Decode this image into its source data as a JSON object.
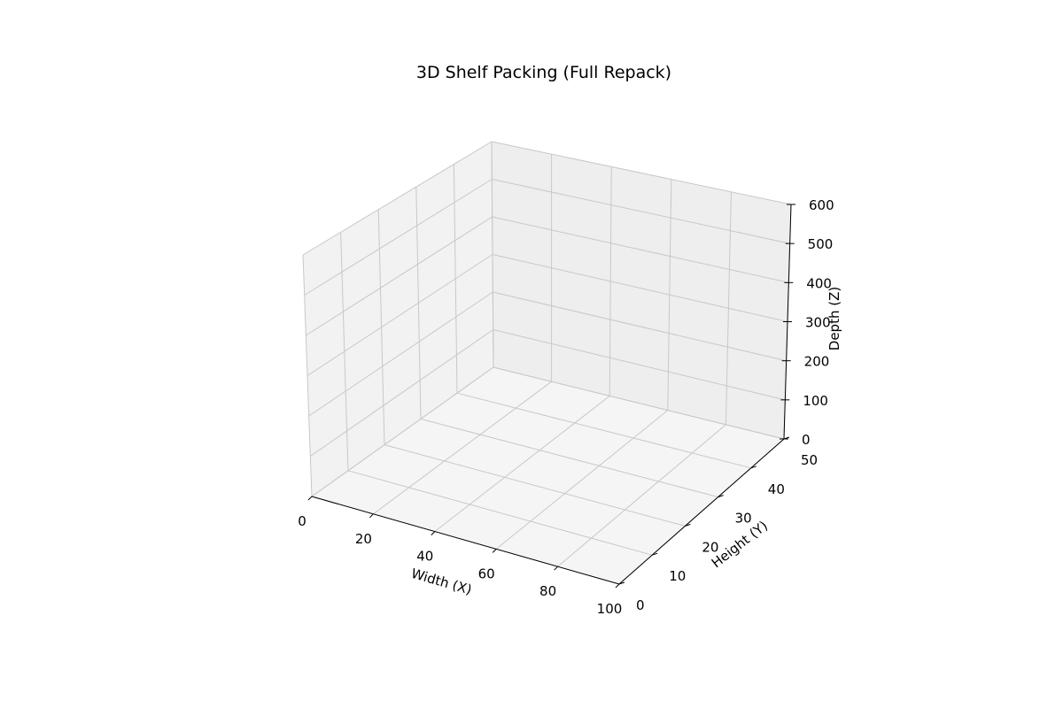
{
  "chart_data": {
    "type": "scatter",
    "projection": "3d",
    "title": "3D Shelf Packing (Full Repack)",
    "xlabel": "Width (X)",
    "ylabel": "Height (Y)",
    "zlabel": "Depth (Z)",
    "xlim": [
      0,
      100
    ],
    "ylim": [
      0,
      50
    ],
    "zlim": [
      0,
      600
    ],
    "xticks": [
      "0",
      "20",
      "40",
      "60",
      "80",
      "100"
    ],
    "yticks": [
      "0",
      "10",
      "20",
      "30",
      "40",
      "50"
    ],
    "zticks": [
      "0",
      "100",
      "200",
      "300",
      "400",
      "500",
      "600"
    ],
    "grid": true,
    "series": [],
    "colors": {
      "pane_side": "#f2f2f2",
      "pane_floor": "#f5f5f5",
      "pane_back": "#eeeeee",
      "grid": "#c8c8c8",
      "axis": "#000000"
    }
  }
}
